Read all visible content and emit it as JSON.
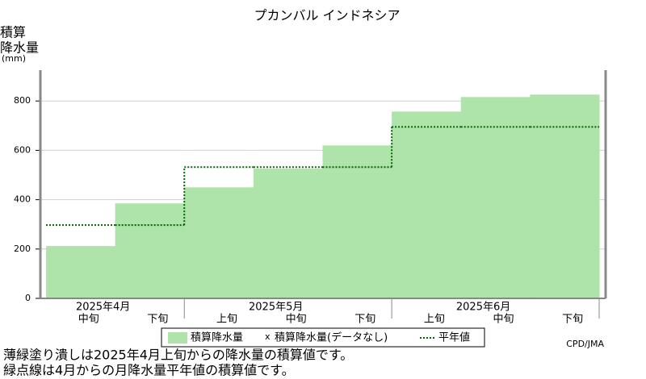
{
  "chart_data": {
    "type": "step",
    "title": "プカンバル インドネシア",
    "y_label": [
      "積算",
      "降水量",
      "(mm)"
    ],
    "categories": [
      "中旬",
      "下旬",
      "上旬",
      "中旬",
      "下旬",
      "上旬",
      "中旬",
      "下旬"
    ],
    "category_groups": [
      {
        "label": "2025年4月",
        "count": 2
      },
      {
        "label": "2025年5月",
        "count": 3
      },
      {
        "label": "2025年6月",
        "count": 3
      }
    ],
    "series": [
      {
        "name": "積算降水量",
        "color": "#aee3a9",
        "style": "bar",
        "values": [
          212,
          385,
          450,
          526,
          620,
          757,
          816,
          826
        ]
      },
      {
        "name": "平年値",
        "color": "#006400",
        "style": "dotted",
        "values": [
          297,
          297,
          532,
          532,
          532,
          695,
          695,
          695
        ]
      }
    ],
    "missing_legend": {
      "marker": "x",
      "label": "積算降水量(データなし)"
    },
    "ylim": [
      0,
      925
    ],
    "yticks": [
      0,
      200,
      400,
      600,
      800
    ],
    "grid": true,
    "credit": "CPD/JMA",
    "notes": [
      "薄緑塗り潰しは2025年4月上旬からの降水量の積算値です。",
      "緑点線は4月からの月降水量平年値の積算値です。"
    ]
  }
}
